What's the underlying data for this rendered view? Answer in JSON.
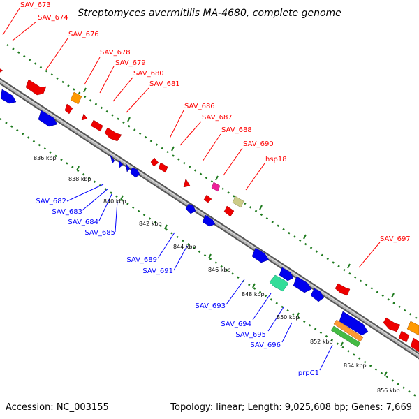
{
  "title": "Streptomyces avermitilis MA-4680, complete genome",
  "footer": {
    "accession": "Accession: NC_003155",
    "summary": "Topology: linear; Length: 9,025,608 bp; Genes: 7,669"
  },
  "colors": {
    "forward_label": "#ff0000",
    "reverse_label": "#0000ff",
    "tick": "#1e7a1e",
    "backbone": "#888888"
  },
  "scale_ticks": [
    "836 kbp",
    "838 kbp",
    "840 kbp",
    "842 kbp",
    "844 kbp",
    "846 kbp",
    "848 kbp",
    "850 kbp",
    "852 kbp",
    "854 kbp",
    "856 kbp"
  ],
  "genes_forward": [
    {
      "label": "SAV_673",
      "color": "#ff0000"
    },
    {
      "label": "SAV_674",
      "color": "#ff0000"
    },
    {
      "label": "SAV_676",
      "color": "#ff9900"
    },
    {
      "label": "SAV_678",
      "color": "#ff0000"
    },
    {
      "label": "SAV_679",
      "color": "#ff0000"
    },
    {
      "label": "SAV_680",
      "color": "#ff0000"
    },
    {
      "label": "SAV_681",
      "color": "#ff0000"
    },
    {
      "label": "SAV_686",
      "color": "#ff0000"
    },
    {
      "label": "SAV_687",
      "color": "#ff0000"
    },
    {
      "label": "SAV_688",
      "color": "#ff0000"
    },
    {
      "label": "SAV_690",
      "color": "#ff3399"
    },
    {
      "label": "hsp18",
      "color": "#cccc88"
    },
    {
      "label": "SAV_697",
      "color": "#ff0000"
    }
  ],
  "genes_reverse": [
    {
      "label": "SAV_682",
      "color": "#0000ff"
    },
    {
      "label": "SAV_683",
      "color": "#0000ff"
    },
    {
      "label": "SAV_684",
      "color": "#0000ff"
    },
    {
      "label": "SAV_685",
      "color": "#0000ff"
    },
    {
      "label": "SAV_689",
      "color": "#0000ff"
    },
    {
      "label": "SAV_691",
      "color": "#0000ff"
    },
    {
      "label": "SAV_693",
      "color": "#0000ff"
    },
    {
      "label": "SAV_694",
      "color": "#33cc99"
    },
    {
      "label": "SAV_695",
      "color": "#0000ff"
    },
    {
      "label": "SAV_696",
      "color": "#ff9933"
    },
    {
      "label": "prpC1",
      "color": "#44bb44"
    }
  ]
}
